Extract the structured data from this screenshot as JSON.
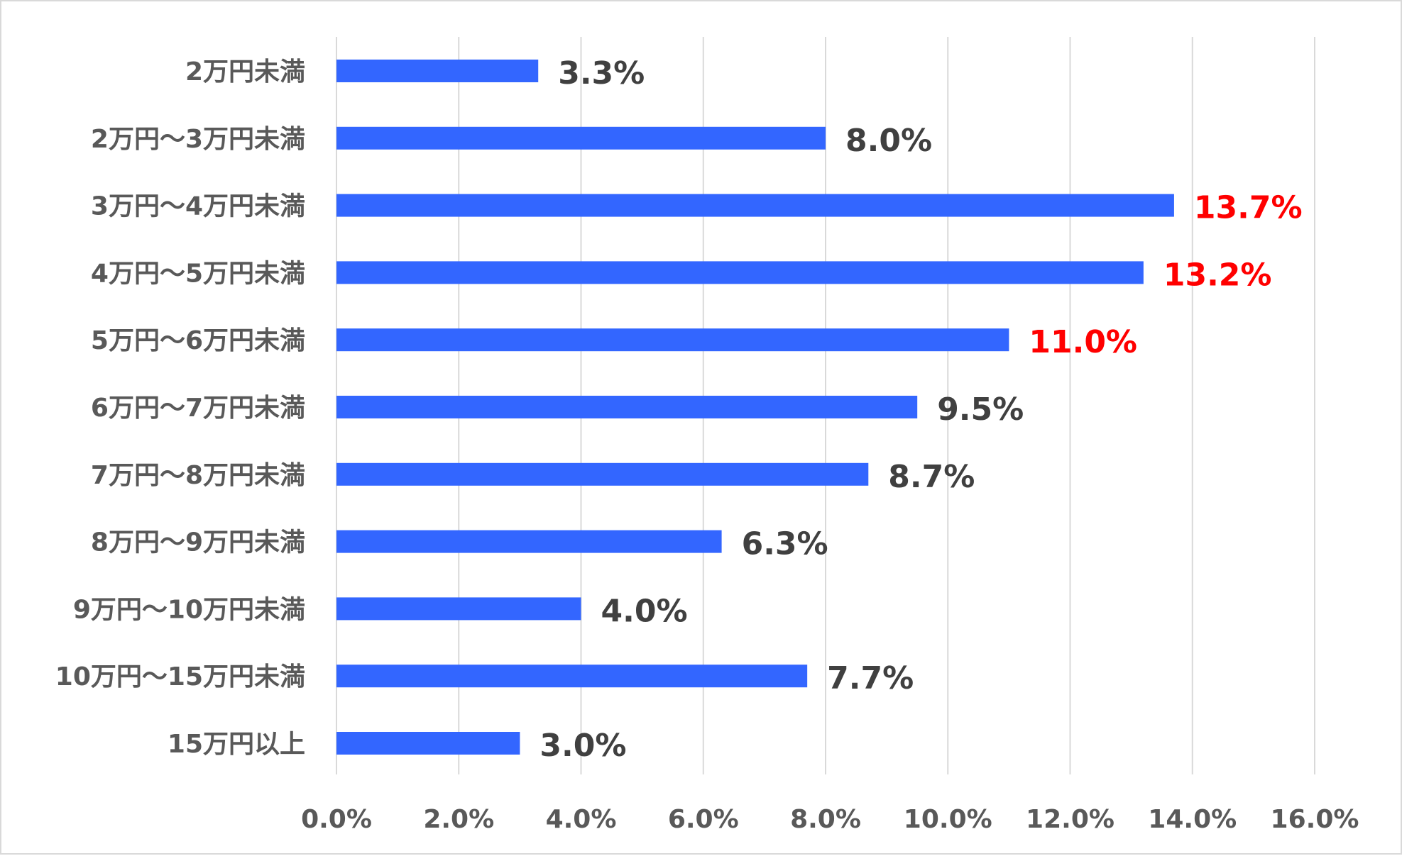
{
  "chart_data": {
    "type": "bar",
    "orientation": "horizontal",
    "title": "",
    "xlabel": "",
    "ylabel": "",
    "categories": [
      "2万円未満",
      "2万円～3万円未満",
      "3万円～4万円未満",
      "4万円～5万円未満",
      "5万円～6万円未満",
      "6万円～7万円未満",
      "7万円～8万円未満",
      "8万円～9万円未満",
      "9万円～10万円未満",
      "10万円～15万円未満",
      "15万円以上"
    ],
    "values": [
      3.3,
      8.0,
      13.7,
      13.2,
      11.0,
      9.5,
      8.7,
      6.3,
      4.0,
      7.7,
      3.0
    ],
    "data_labels": [
      "3.3%",
      "8.0%",
      "13.7%",
      "13.2%",
      "11.0%",
      "9.5%",
      "8.7%",
      "6.3%",
      "4.0%",
      "7.7%",
      "3.0%"
    ],
    "highlighted": [
      false,
      false,
      true,
      true,
      true,
      false,
      false,
      false,
      false,
      false,
      false
    ],
    "xlim": [
      0,
      16
    ],
    "x_ticks": [
      0,
      2,
      4,
      6,
      8,
      10,
      12,
      14,
      16
    ],
    "x_tick_labels": [
      "0.0%",
      "2.0%",
      "4.0%",
      "6.0%",
      "8.0%",
      "10.0%",
      "12.0%",
      "14.0%",
      "16.0%"
    ],
    "grid": true,
    "legend": "none",
    "colors": {
      "bar": "#3366ff",
      "label": "#404040",
      "highlight_label": "#ff0000",
      "axis_text": "#595959",
      "grid": "#d9d9d9"
    }
  }
}
